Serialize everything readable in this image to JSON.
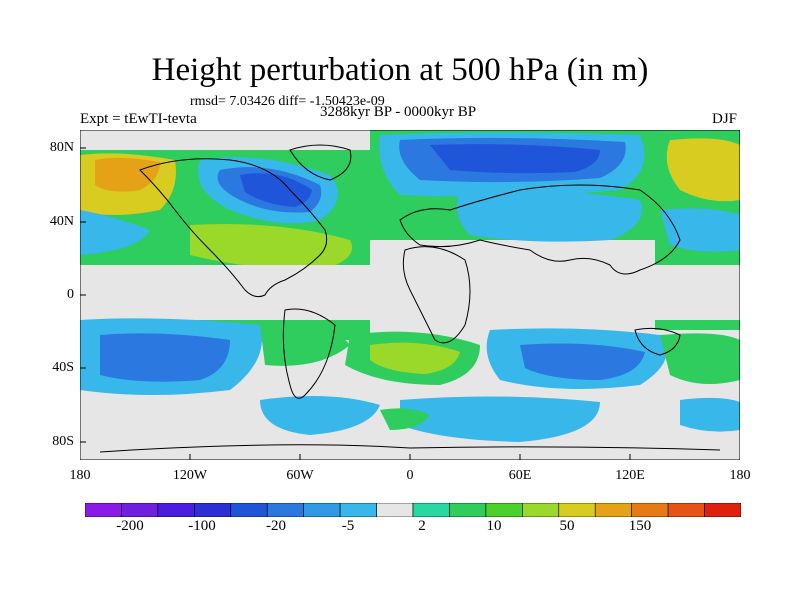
{
  "title": "Height perturbation at 500 hPa (in m)",
  "stats": "rmsd= 7.03426 diff= -1.50423e-09",
  "experiment": "Expt = tEwTI-tevta",
  "period": "3288kyr BP - 0000kyr BP",
  "season": "DJF",
  "chart_data": {
    "type": "heatmap",
    "projection": "cylindrical-equidistant",
    "xlim": [
      -180,
      180
    ],
    "ylim": [
      -90,
      90
    ],
    "lat_ticks": [
      {
        "value": 80,
        "label": "80N"
      },
      {
        "value": 40,
        "label": "40N"
      },
      {
        "value": 0,
        "label": "0"
      },
      {
        "value": -40,
        "label": "40S"
      },
      {
        "value": -80,
        "label": "80S"
      }
    ],
    "lon_ticks": [
      {
        "value": -180,
        "label": "180"
      },
      {
        "value": -120,
        "label": "120W"
      },
      {
        "value": -60,
        "label": "60W"
      },
      {
        "value": 0,
        "label": "0"
      },
      {
        "value": 60,
        "label": "60E"
      },
      {
        "value": 120,
        "label": "120E"
      },
      {
        "value": 180,
        "label": "180"
      }
    ],
    "colorbar": {
      "colors": [
        "#8a1ae8",
        "#6e1fe0",
        "#4a1ee0",
        "#2e2ed6",
        "#1f55d8",
        "#2a78e0",
        "#2f9ae6",
        "#38b7ea",
        "#e6e6e6",
        "#27d8a0",
        "#2fcc5e",
        "#4cd12c",
        "#9ad82a",
        "#d7cc1f",
        "#e5a217",
        "#e87a14",
        "#e85214",
        "#e0200f"
      ],
      "tick_labels": [
        "-200",
        "-100",
        "-20",
        "-5",
        "2",
        "10",
        "50",
        "150"
      ]
    },
    "features": [
      {
        "name": "north-pacific-positive",
        "lon": -165,
        "lat": 58,
        "value": 50
      },
      {
        "name": "canada-negative",
        "lon": -95,
        "lat": 55,
        "value": -100
      },
      {
        "name": "north-atlantic-negative",
        "lon": 0,
        "lat": 70,
        "value": -100
      },
      {
        "name": "eurasia-negative",
        "lon": 60,
        "lat": 72,
        "value": -100
      },
      {
        "name": "east-asia-positive",
        "lon": 160,
        "lat": 62,
        "value": 50
      },
      {
        "name": "north-atlantic-positive",
        "lon": -60,
        "lat": 40,
        "value": 50
      },
      {
        "name": "south-pacific-negative",
        "lon": -160,
        "lat": -45,
        "value": -20
      },
      {
        "name": "south-atlantic-positive",
        "lon": -20,
        "lat": -40,
        "value": 50
      },
      {
        "name": "indian-ocean-negative",
        "lon": 110,
        "lat": -50,
        "value": -20
      }
    ]
  }
}
